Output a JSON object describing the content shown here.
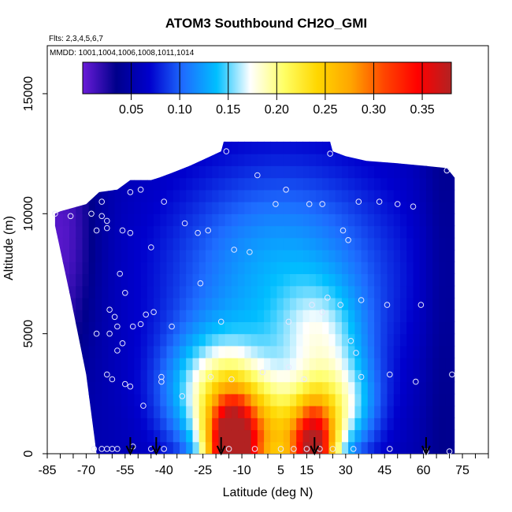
{
  "chart_data": {
    "type": "heatmap",
    "title": "ATOM3 Southbound CH2O_GMI",
    "subtitle_flights": "Flts: 2,3,4,5,6,7",
    "subtitle_dates": "MMDD: 1001,1004,1006,1008,1011,1014",
    "xlabel": "Latitude (deg N)",
    "ylabel": "Altitude (m)",
    "xlim": [
      -85,
      85
    ],
    "ylim": [
      0,
      17000
    ],
    "x_ticks": [
      -85,
      -70,
      -55,
      -40,
      -25,
      -10,
      5,
      15,
      30,
      45,
      60,
      75
    ],
    "x_tick_labels": [
      "-85",
      "-70",
      "-55",
      "-40",
      "-25",
      "-10",
      "5",
      "15",
      "30",
      "45",
      "60",
      "75"
    ],
    "y_ticks": [
      0,
      5000,
      10000,
      15000
    ],
    "y_tick_labels": [
      "0",
      "5000",
      "10000",
      "15000"
    ],
    "colorbar": {
      "range": [
        0.0,
        0.38
      ],
      "ticks": [
        0.05,
        0.1,
        0.15,
        0.2,
        0.25,
        0.3,
        0.35
      ],
      "tick_labels": [
        "0.05",
        "0.10",
        "0.15",
        "0.20",
        "0.25",
        "0.30",
        "0.35"
      ],
      "colors": [
        "#6a1cd8",
        "#00008b",
        "#0000cd",
        "#1e6cff",
        "#00bfff",
        "#ffffff",
        "#ffff66",
        "#ffd700",
        "#ffa500",
        "#ff4500",
        "#ff0000",
        "#b22222"
      ]
    },
    "arrow_latitudes": [
      -53,
      -43,
      -18,
      18,
      61
    ],
    "sample_points": [
      [
        -67,
        200
      ],
      [
        -64,
        200
      ],
      [
        -62,
        200
      ],
      [
        -60,
        200
      ],
      [
        -58,
        200
      ],
      [
        -52,
        300
      ],
      [
        -45,
        200
      ],
      [
        -40,
        200
      ],
      [
        -15,
        200
      ],
      [
        -5,
        200
      ],
      [
        5,
        200
      ],
      [
        10,
        200
      ],
      [
        15,
        200
      ],
      [
        20,
        200
      ],
      [
        25,
        200
      ],
      [
        33,
        200
      ],
      [
        47,
        200
      ],
      [
        61,
        100
      ],
      [
        70,
        100
      ],
      [
        -55,
        2900
      ],
      [
        -53,
        2800
      ],
      [
        -48,
        2000
      ],
      [
        -41,
        3200
      ],
      [
        -41,
        3000
      ],
      [
        -33,
        2400
      ],
      [
        -22,
        3200
      ],
      [
        -14,
        3100
      ],
      [
        -2,
        3400
      ],
      [
        8,
        3600
      ],
      [
        14,
        3100
      ],
      [
        36,
        3200
      ],
      [
        47,
        3300
      ],
      [
        57,
        3000
      ],
      [
        71,
        3300
      ],
      [
        -62,
        3300
      ],
      [
        -60,
        3100
      ],
      [
        -66,
        5000
      ],
      [
        -61,
        5000
      ],
      [
        -58,
        5300
      ],
      [
        -58,
        4300
      ],
      [
        -56,
        4600
      ],
      [
        -52,
        5300
      ],
      [
        -49,
        5400
      ],
      [
        -47,
        5800
      ],
      [
        -44,
        5900
      ],
      [
        -37,
        5300
      ],
      [
        -18,
        5500
      ],
      [
        8,
        5500
      ],
      [
        17,
        6200
      ],
      [
        21,
        5900
      ],
      [
        23,
        6500
      ],
      [
        28,
        6200
      ],
      [
        32,
        4700
      ],
      [
        34,
        4200
      ],
      [
        36,
        6400
      ],
      [
        46,
        6200
      ],
      [
        59,
        6200
      ],
      [
        -61,
        6000
      ],
      [
        -59,
        5700
      ],
      [
        -55,
        6700
      ],
      [
        -57,
        7500
      ],
      [
        -26,
        7100
      ],
      [
        -82,
        10000
      ],
      [
        -76,
        9900
      ],
      [
        -68,
        10000
      ],
      [
        -64,
        9900
      ],
      [
        -66,
        9300
      ],
      [
        -62,
        9700
      ],
      [
        -62,
        9400
      ],
      [
        -56,
        9300
      ],
      [
        -53,
        9200
      ],
      [
        -45,
        8600
      ],
      [
        -32,
        9600
      ],
      [
        -27,
        9200
      ],
      [
        -23,
        9300
      ],
      [
        -13,
        8500
      ],
      [
        -7,
        8400
      ],
      [
        29,
        9300
      ],
      [
        31,
        8900
      ],
      [
        -53,
        10900
      ],
      [
        -49,
        11000
      ],
      [
        -64,
        10500
      ],
      [
        -40,
        10500
      ],
      [
        -4,
        11600
      ],
      [
        3,
        10400
      ],
      [
        16,
        10400
      ],
      [
        7,
        11000
      ],
      [
        21,
        10400
      ],
      [
        35,
        10500
      ],
      [
        43,
        10500
      ],
      [
        50,
        10400
      ],
      [
        56,
        10300
      ],
      [
        69,
        11800
      ],
      [
        -16,
        12600
      ],
      [
        24,
        12500
      ]
    ],
    "field_summary": "Latitude-altitude curtain of CH2O (ppb) from -82 to 72 deg N, 0 to ~13000 m; peaks ~0.35 near -15 deg N and ~0.30 near 17 deg N below 2000 m; values ~0.05 aloft and at high latitudes"
  }
}
